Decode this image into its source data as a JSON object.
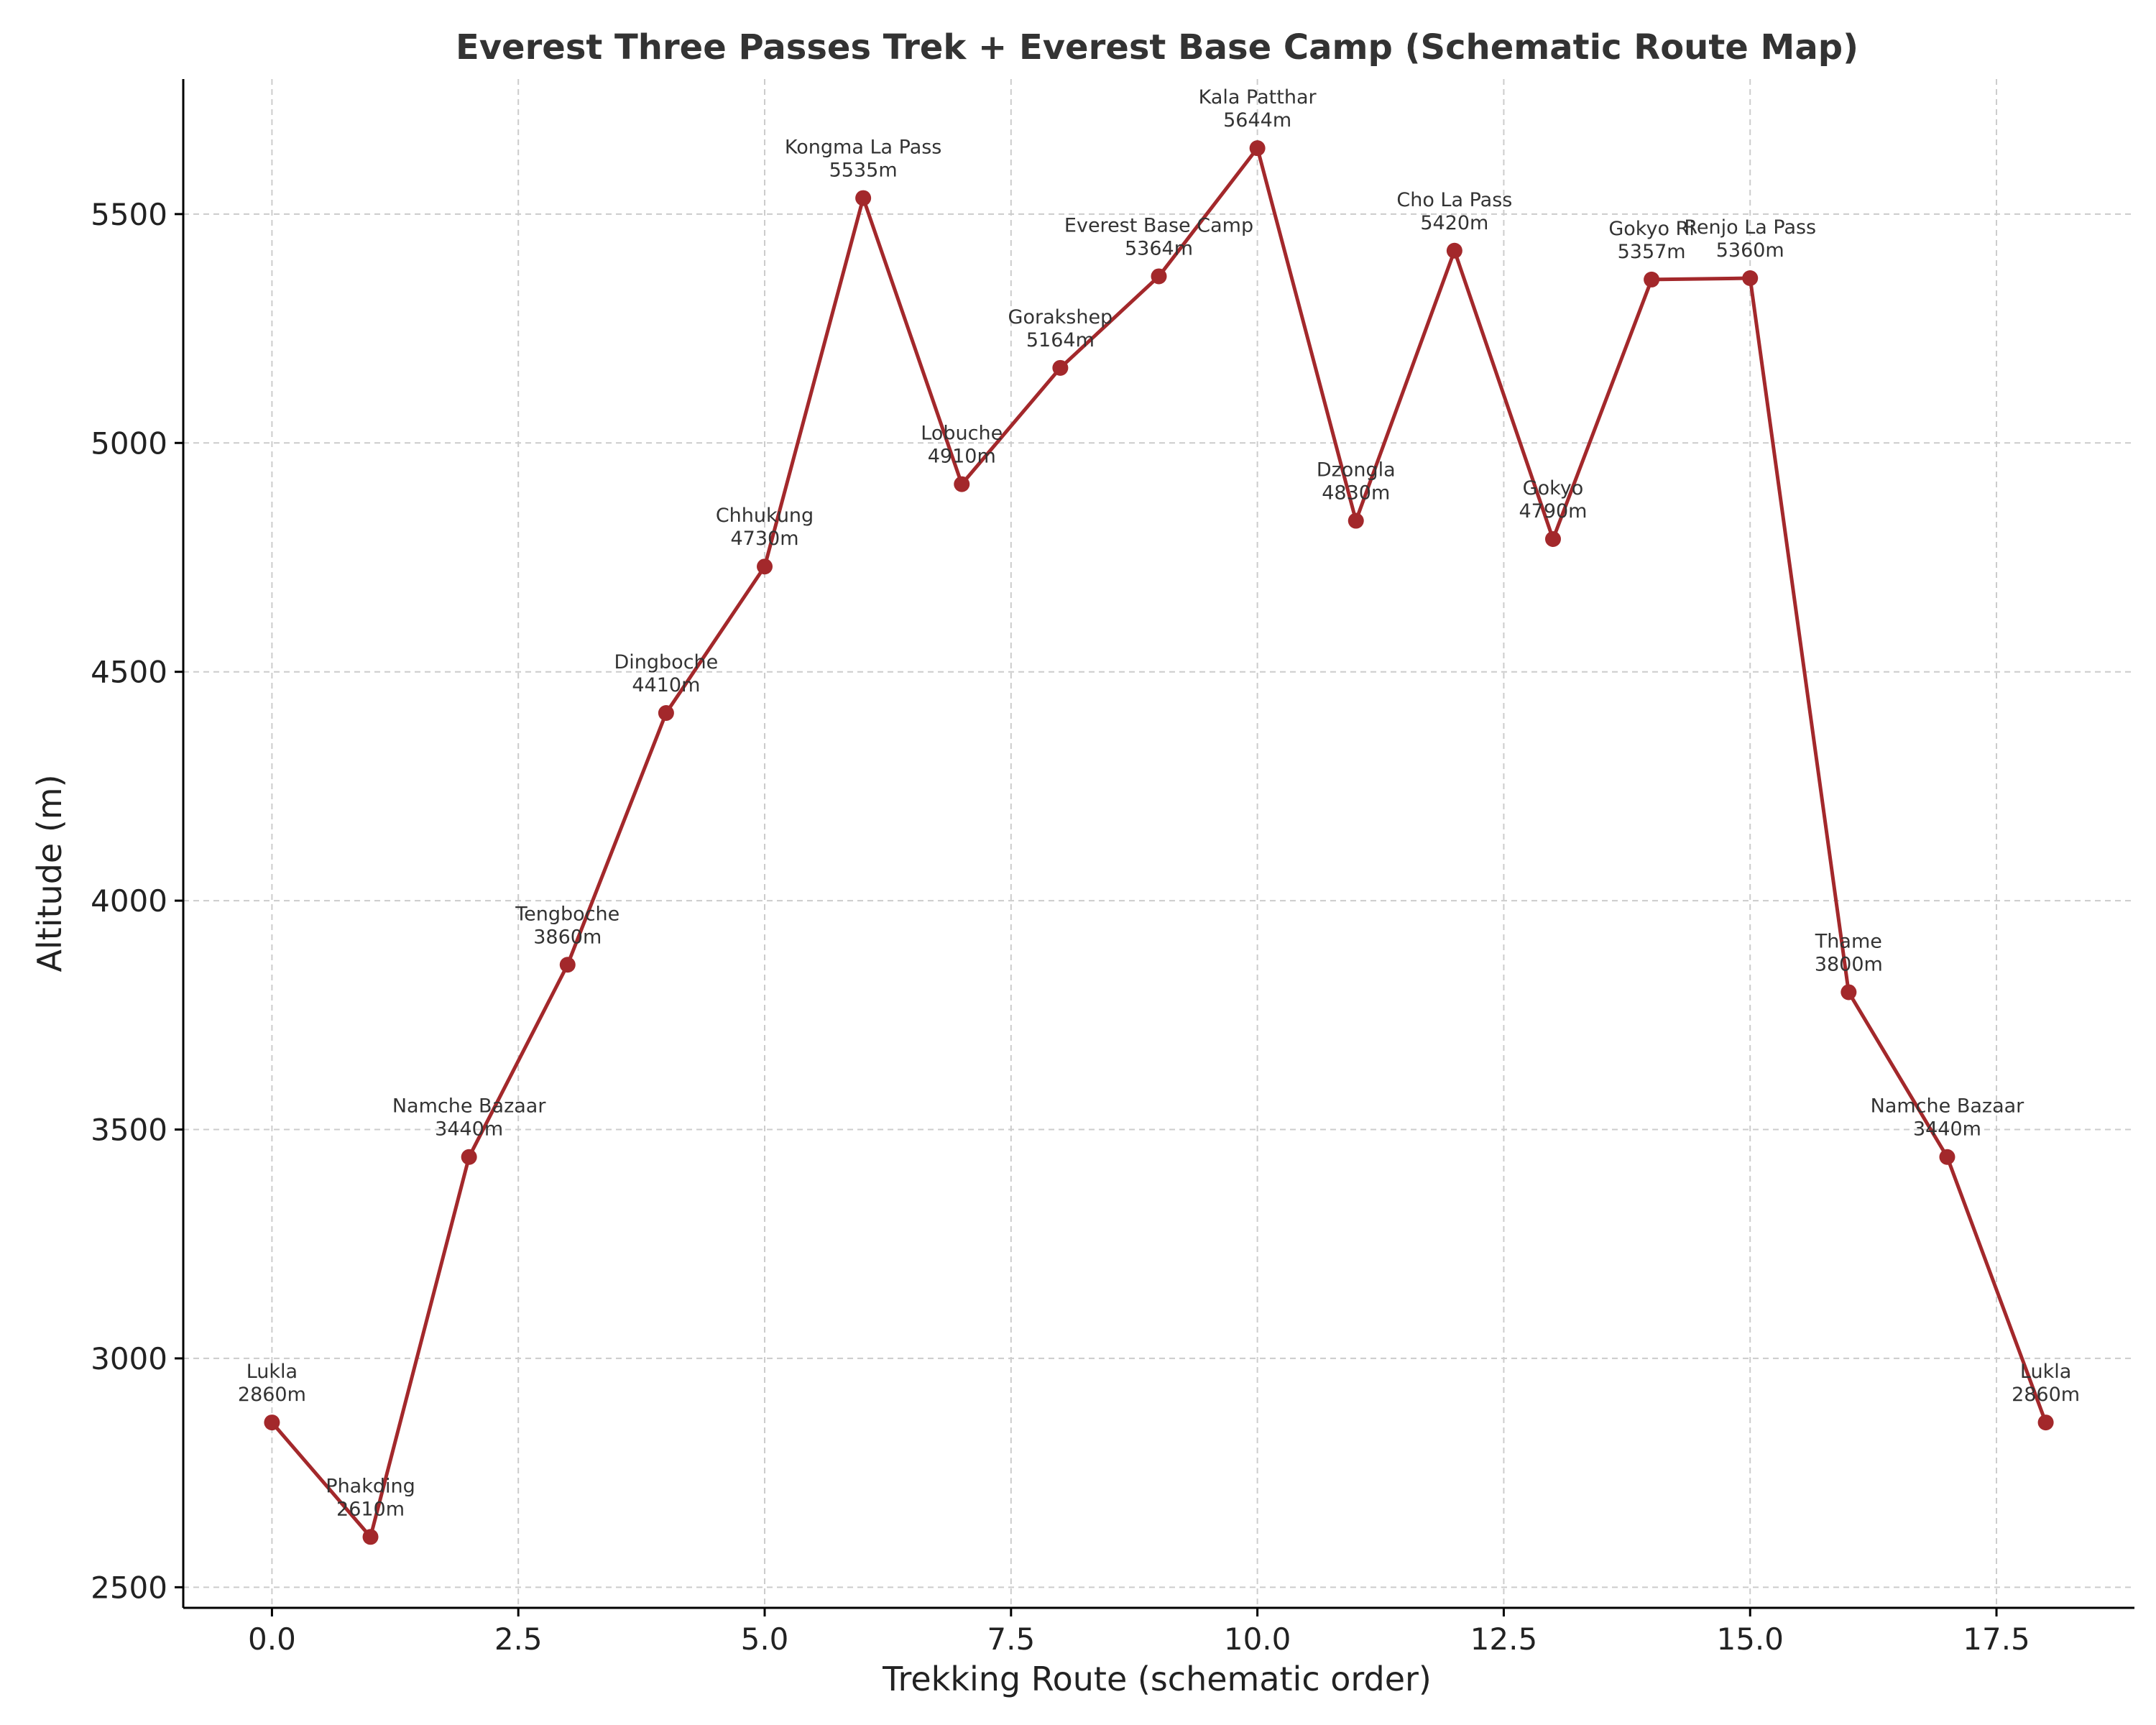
{
  "chart_data": {
    "type": "line",
    "title": "Everest Three Passes Trek + Everest Base Camp (Schematic Route Map)",
    "xlabel": "Trekking Route (schematic order)",
    "ylabel": "Altitude (m)",
    "xlim": [
      -0.9,
      18.9
    ],
    "ylim": [
      2455,
      5795
    ],
    "xticks": [
      0,
      2.5,
      5,
      7.5,
      10,
      12.5,
      15,
      17.5
    ],
    "xtick_labels": [
      "0.0",
      "2.5",
      "5.0",
      "7.5",
      "10.0",
      "12.5",
      "15.0",
      "17.5"
    ],
    "yticks": [
      2500,
      3000,
      3500,
      4000,
      4500,
      5000,
      5500
    ],
    "ytick_labels": [
      "2500",
      "3000",
      "3500",
      "4000",
      "4500",
      "5000",
      "5500"
    ],
    "grid": true,
    "color": "#a3282b",
    "x": [
      0,
      1,
      2,
      3,
      4,
      5,
      6,
      7,
      8,
      9,
      10,
      11,
      12,
      13,
      14,
      15,
      16,
      17,
      18
    ],
    "y": [
      2860,
      2610,
      3440,
      3860,
      4410,
      4730,
      5535,
      4910,
      5164,
      5364,
      5644,
      4830,
      5420,
      4790,
      5357,
      5360,
      3800,
      3440,
      2860
    ],
    "point_names": [
      "Lukla",
      "Phakding",
      "Namche Bazaar",
      "Tengboche",
      "Dingboche",
      "Chhukung",
      "Kongma La Pass",
      "Lobuche",
      "Gorakshep",
      "Everest Base Camp",
      "Kala Patthar",
      "Dzongla",
      "Cho La Pass",
      "Gokyo",
      "Gokyo Ri",
      "Renjo La Pass",
      "Thame",
      "Namche Bazaar",
      "Lukla"
    ],
    "point_altitude_labels": [
      "2860m",
      "2610m",
      "3440m",
      "3860m",
      "4410m",
      "4730m",
      "5535m",
      "4910m",
      "5164m",
      "5364m",
      "5644m",
      "4830m",
      "5420m",
      "4790m",
      "5357m",
      "5360m",
      "3800m",
      "3440m",
      "2860m"
    ]
  }
}
